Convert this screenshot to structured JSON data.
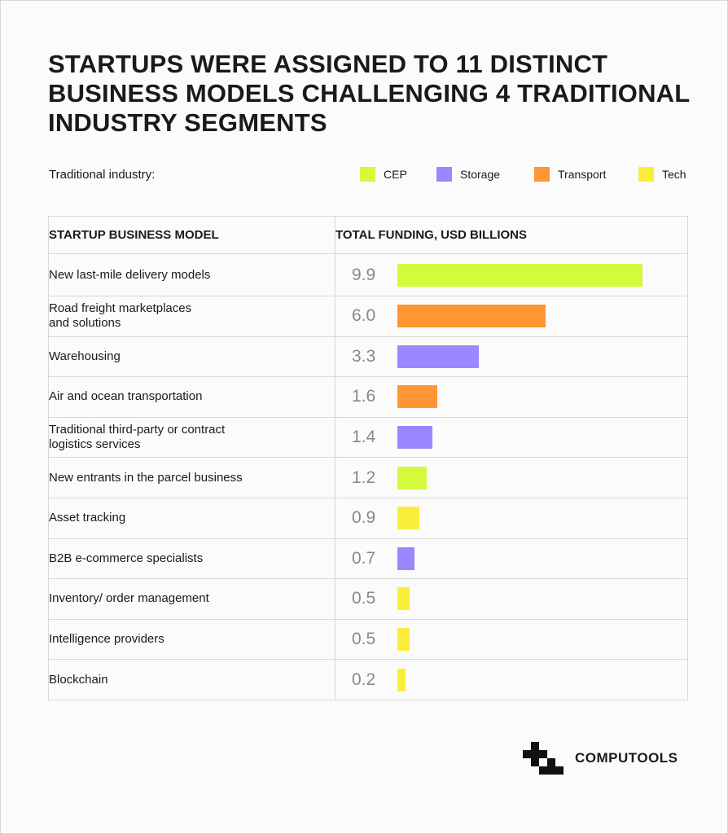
{
  "title": "STARTUPS WERE ASSIGNED TO 11 DISTINCT BUSINESS MODELS CHALLENGING 4 TRADITIONAL INDUSTRY SEGMENTS",
  "legend": {
    "label": "Traditional industry:",
    "items": [
      {
        "name": "CEP",
        "color": "#d4fa3c"
      },
      {
        "name": "Storage",
        "color": "#9b87ff"
      },
      {
        "name": "Transport",
        "color": "#ff9533"
      },
      {
        "name": "Tech",
        "color": "#fbee3a"
      }
    ]
  },
  "table": {
    "col1_header": "STARTUP BUSINESS MODEL",
    "col2_header": "TOTAL FUNDING, USD BILLIONS"
  },
  "chart_data": {
    "type": "bar",
    "orientation": "horizontal",
    "title": "STARTUPS WERE ASSIGNED TO 11 DISTINCT BUSINESS MODELS CHALLENGING 4 TRADITIONAL INDUSTRY SEGMENTS",
    "xlabel": "TOTAL FUNDING, USD BILLIONS",
    "ylabel": "STARTUP BUSINESS MODEL",
    "categories": [
      "New last-mile delivery models",
      "Road freight marketplaces\nand solutions",
      "Warehousing",
      "Air and ocean transportation",
      "Traditional third-party or contract\nlogistics services",
      "New entrants in the parcel business",
      "Asset tracking",
      "B2B e-commerce specialists",
      "Inventory/ order management",
      "Intelligence providers",
      "Blockchain"
    ],
    "values": [
      9.9,
      6.0,
      3.3,
      1.6,
      1.4,
      1.2,
      0.9,
      0.7,
      0.5,
      0.5,
      0.2
    ],
    "labels": [
      "9.9",
      "6.0",
      "3.3",
      "1.6",
      "1.4",
      "1.2",
      "0.9",
      "0.7",
      "0.5",
      "0.5",
      "0.2"
    ],
    "segments": [
      "CEP",
      "Transport",
      "Storage",
      "Transport",
      "Storage",
      "CEP",
      "Tech",
      "Storage",
      "Tech",
      "Tech",
      "Tech"
    ],
    "xlim": [
      0,
      9.9
    ],
    "grid": false,
    "legend_position": "top"
  },
  "logo": {
    "text": "COMPUTOOLS"
  }
}
